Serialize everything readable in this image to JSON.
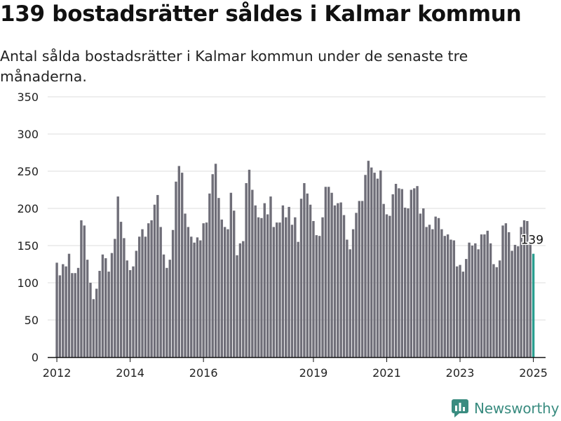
{
  "header": {
    "title": "139 bostadsrätter såldes i Kalmar kommun",
    "subtitle": "Antal sålda bostadsrätter i Kalmar kommun under de senaste tre månaderna."
  },
  "brand": {
    "name": "Newsworthy",
    "icon": "newsworthy-logo-icon",
    "color": "#3a8c80"
  },
  "colors": {
    "bar": "#6f6e78",
    "highlight": "#2a9d8f",
    "grid": "#dddddd",
    "axis": "#111111"
  },
  "chart_data": {
    "type": "bar",
    "title": "139 bostadsrätter såldes i Kalmar kommun",
    "subtitle": "Antal sålda bostadsrätter i Kalmar kommun under de senaste tre månaderna.",
    "xlabel": "",
    "ylabel": "",
    "ylim": [
      0,
      350
    ],
    "yticks": [
      0,
      50,
      100,
      150,
      200,
      250,
      300,
      350
    ],
    "xlim": [
      "2011-10",
      "2025-05"
    ],
    "xticks": [
      {
        "date": "2012-01",
        "label": "2012"
      },
      {
        "date": "2014-01",
        "label": "2014"
      },
      {
        "date": "2016-01",
        "label": "2016"
      },
      {
        "date": "2019-01",
        "label": "2019"
      },
      {
        "date": "2021-01",
        "label": "2021"
      },
      {
        "date": "2023-01",
        "label": "2023"
      },
      {
        "date": "2025-01",
        "label": "2025"
      }
    ],
    "grid": true,
    "legend": "none",
    "start": "2012-01",
    "values": [
      127,
      110,
      125,
      122,
      139,
      113,
      113,
      120,
      184,
      177,
      131,
      100,
      78,
      92,
      116,
      138,
      133,
      115,
      140,
      159,
      216,
      182,
      160,
      130,
      117,
      122,
      143,
      162,
      172,
      162,
      180,
      184,
      205,
      218,
      175,
      138,
      120,
      131,
      171,
      236,
      257,
      248,
      193,
      175,
      162,
      154,
      161,
      157,
      180,
      181,
      220,
      246,
      260,
      214,
      185,
      175,
      172,
      221,
      197,
      137,
      153,
      156,
      234,
      252,
      225,
      204,
      188,
      187,
      207,
      192,
      216,
      175,
      181,
      181,
      204,
      188,
      202,
      178,
      188,
      155,
      213,
      234,
      220,
      205,
      183,
      164,
      163,
      188,
      229,
      229,
      221,
      204,
      207,
      208,
      191,
      158,
      145,
      172,
      194,
      210,
      210,
      245,
      264,
      255,
      248,
      240,
      251,
      206,
      192,
      190,
      219,
      233,
      227,
      226,
      201,
      200,
      225,
      227,
      230,
      193,
      200,
      175,
      178,
      172,
      189,
      187,
      172,
      163,
      165,
      158,
      157,
      122,
      124,
      115,
      132,
      154,
      150,
      153,
      145,
      165,
      165,
      170,
      153,
      125,
      121,
      130,
      177,
      180,
      168,
      143,
      151,
      149,
      175,
      184,
      183,
      153,
      139
    ],
    "highlight_last": true,
    "annotation": {
      "date": "2025-01",
      "value": 139,
      "label": "139"
    }
  }
}
